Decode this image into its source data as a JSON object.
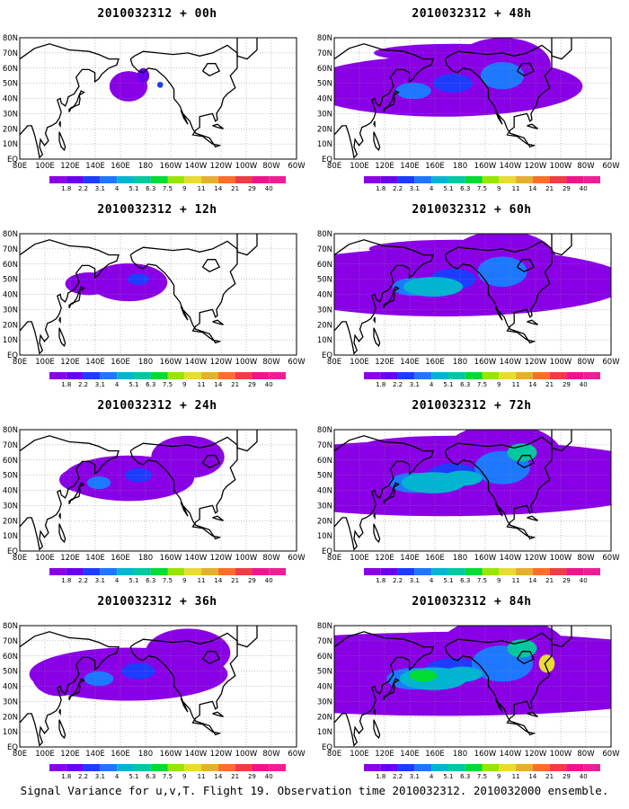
{
  "figure": {
    "caption": "Signal Variance for u,v,T. Flight 19. Observation time 2010032312. 2010032000 ensemble."
  },
  "x_ticks": [
    "80E",
    "100E",
    "120E",
    "140E",
    "160E",
    "180",
    "160W",
    "140W",
    "120W",
    "100W",
    "80W",
    "60W"
  ],
  "y_ticks": [
    "80N",
    "70N",
    "60N",
    "50N",
    "40N",
    "30N",
    "20N",
    "10N",
    "EQ"
  ],
  "colorbar": {
    "labels": [
      "1.8",
      "2.2",
      "3.1",
      "4",
      "5.1",
      "6.3",
      "7.5",
      "9",
      "11",
      "14",
      "21",
      "29",
      "40"
    ],
    "colors": [
      "#8a00e6",
      "#6a00f0",
      "#1e3cff",
      "#1e78ff",
      "#00b4d2",
      "#00c8a0",
      "#00dc32",
      "#96e600",
      "#e6dc32",
      "#e6af2d",
      "#ff6e28",
      "#f03c46",
      "#f0148c"
    ]
  },
  "panels": [
    {
      "title": "2010032312 + 00h",
      "level": 0
    },
    {
      "title": "2010032312 + 12h",
      "level": 1
    },
    {
      "title": "2010032312 + 24h",
      "level": 2
    },
    {
      "title": "2010032312 + 36h",
      "level": 3
    },
    {
      "title": "2010032312 + 48h",
      "level": 4
    },
    {
      "title": "2010032312 + 60h",
      "level": 5
    },
    {
      "title": "2010032312 + 72h",
      "level": 6
    },
    {
      "title": "2010032312 + 84h",
      "level": 7
    }
  ]
}
